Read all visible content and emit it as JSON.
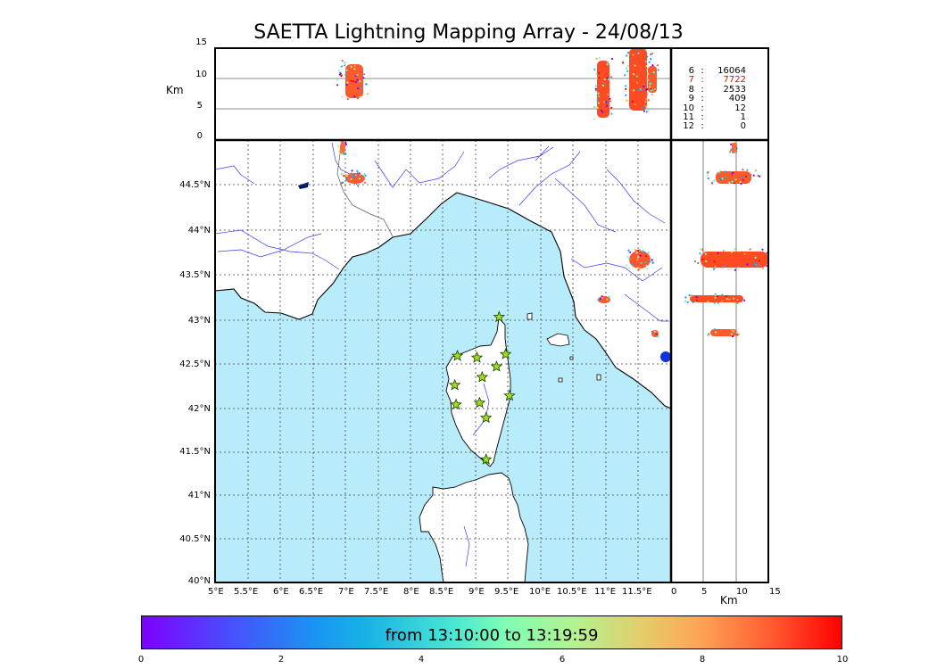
{
  "title": "SAETTA Lightning Mapping Array - 24/08/13",
  "top_panel": {
    "y_label": "Km",
    "y_ticks": [
      "15",
      "10",
      "5",
      "0"
    ]
  },
  "side_panel": {
    "x_label": "Km",
    "x_ticks": [
      "0",
      "5",
      "10",
      "15"
    ]
  },
  "stats": [
    {
      "stations": "6",
      "sep": ":",
      "count": "16064",
      "color": "#000000"
    },
    {
      "stations": "7",
      "sep": ":",
      "count": "7722",
      "color": "#ff0000"
    },
    {
      "stations": "8",
      "sep": ":",
      "count": "2533",
      "color": "#000000"
    },
    {
      "stations": "9",
      "sep": ":",
      "count": "409",
      "color": "#000000"
    },
    {
      "stations": "10",
      "sep": ":",
      "count": "12",
      "color": "#000000"
    },
    {
      "stations": "11",
      "sep": ":",
      "count": "1",
      "color": "#000000"
    },
    {
      "stations": "12",
      "sep": ":",
      "count": "0",
      "color": "#000000"
    }
  ],
  "map": {
    "lon_ticks": [
      "5°E",
      "5.5°E",
      "6°E",
      "6.5°E",
      "7°E",
      "7.5°E",
      "8°E",
      "8.5°E",
      "9°E",
      "9.5°E",
      "10°E",
      "10.5°E",
      "11°E",
      "11.5°E"
    ],
    "lat_ticks": [
      "44.5°N",
      "44°N",
      "43.5°N",
      "43°N",
      "42.5°N",
      "42°N",
      "41.5°N",
      "41°N",
      "40.5°N",
      "40°N"
    ],
    "sea_color": "#b9ecfb",
    "stations": [
      {
        "lon": 9.36,
        "lat": 43.0
      },
      {
        "lon": 8.72,
        "lat": 42.56
      },
      {
        "lon": 9.02,
        "lat": 42.54
      },
      {
        "lon": 9.46,
        "lat": 42.58
      },
      {
        "lon": 9.1,
        "lat": 42.32
      },
      {
        "lon": 9.32,
        "lat": 42.44
      },
      {
        "lon": 8.68,
        "lat": 42.23
      },
      {
        "lon": 9.52,
        "lat": 42.11
      },
      {
        "lon": 8.7,
        "lat": 42.01
      },
      {
        "lon": 9.06,
        "lat": 42.03
      },
      {
        "lon": 9.16,
        "lat": 41.86
      },
      {
        "lon": 9.16,
        "lat": 41.39
      }
    ]
  },
  "colorbar": {
    "label": "from 13:10:00 to 13:19:59",
    "ticks": [
      "0",
      "2",
      "4",
      "6",
      "8",
      "10"
    ]
  }
}
